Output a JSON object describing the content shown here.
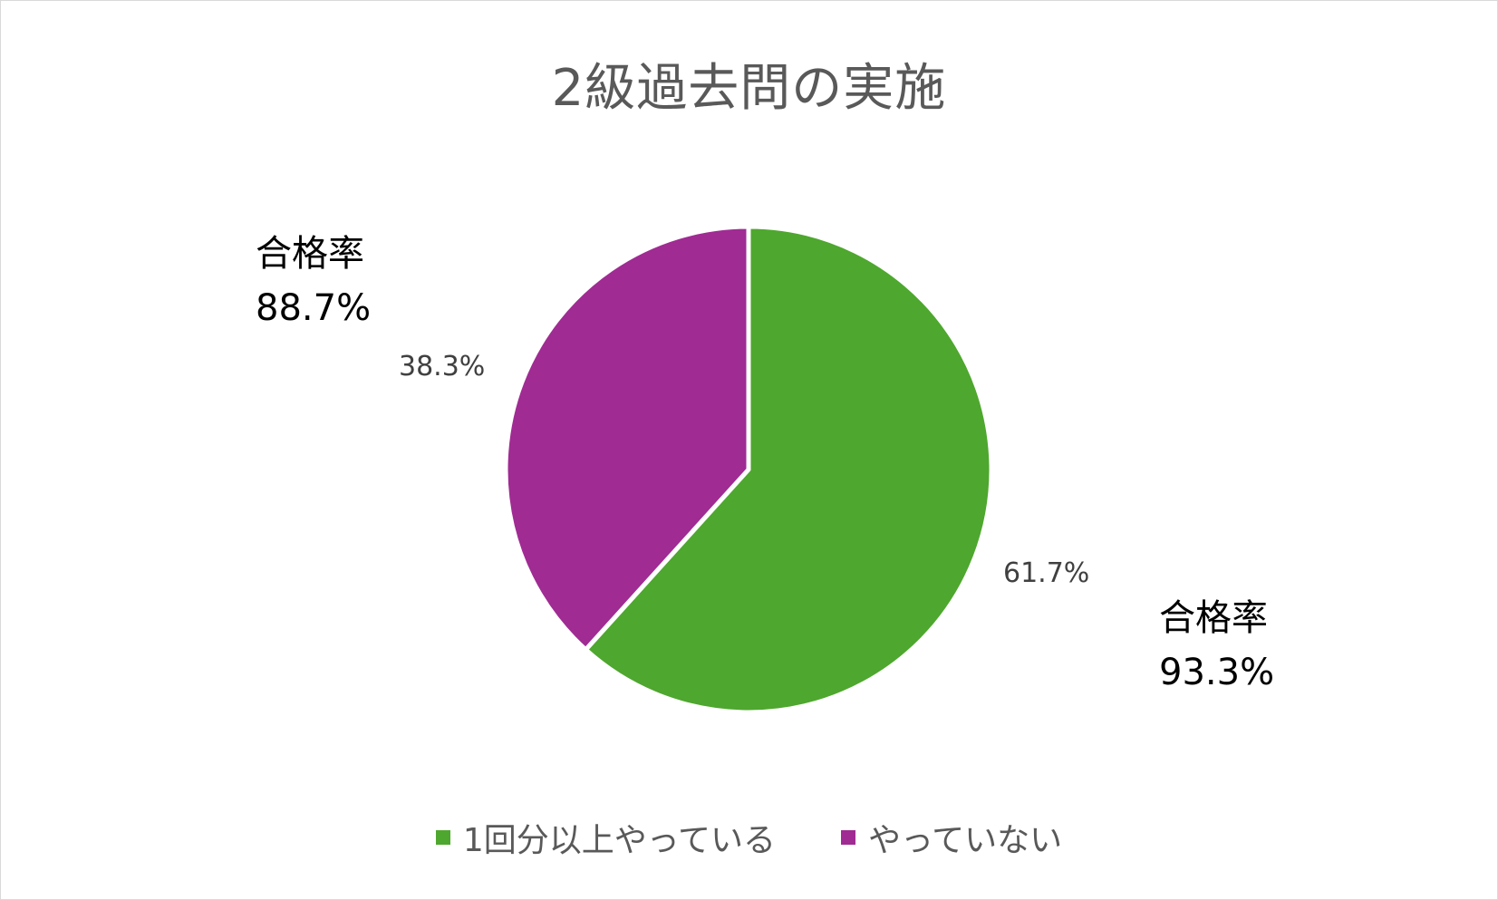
{
  "chart_data": {
    "type": "pie",
    "title": "2級過去問の実施",
    "categories": [
      "1回分以上やっている",
      "やっていない"
    ],
    "values": [
      61.7,
      38.3
    ],
    "value_labels": [
      "61.7%",
      "38.3%"
    ],
    "colors": [
      "#4EA72E",
      "#A02B93"
    ],
    "legend_position": "bottom",
    "annotations": [
      {
        "category": "1回分以上やっている",
        "label": "合格率",
        "value": "93.3%"
      },
      {
        "category": "やっていない",
        "label": "合格率",
        "value": "88.7%"
      }
    ]
  }
}
